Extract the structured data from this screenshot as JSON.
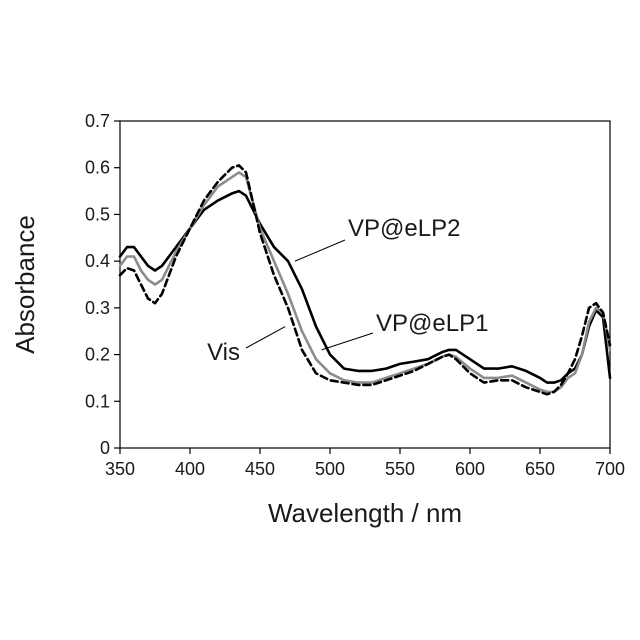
{
  "chart_data": {
    "type": "line",
    "title": "",
    "xlabel": "Wavelength / nm",
    "ylabel": "Absorbance",
    "xlim": [
      350,
      700
    ],
    "ylim": [
      0,
      0.7
    ],
    "xticks": [
      "350",
      "400",
      "450",
      "500",
      "550",
      "600",
      "650",
      "700"
    ],
    "yticks": [
      "0",
      "0.1",
      "0.2",
      "0.3",
      "0.4",
      "0.5",
      "0.6",
      "0.7"
    ],
    "grid": false,
    "legend": "none",
    "annotations": [
      {
        "text": "VP@eLP2",
        "series": 0,
        "x": 475,
        "y": 0.4
      },
      {
        "text": "VP@eLP1",
        "series": 1,
        "x": 494,
        "y": 0.21
      },
      {
        "text": "Vis",
        "series": 2,
        "x": 468,
        "y": 0.26
      }
    ],
    "series": [
      {
        "color": "#000000",
        "dash": "solid",
        "x": [
          350,
          355,
          360,
          365,
          370,
          375,
          380,
          390,
          400,
          410,
          420,
          430,
          435,
          440,
          450,
          460,
          470,
          480,
          490,
          500,
          510,
          520,
          530,
          540,
          550,
          560,
          570,
          580,
          585,
          590,
          600,
          610,
          620,
          630,
          640,
          650,
          655,
          660,
          665,
          670,
          675,
          680,
          685,
          690,
          695,
          700
        ],
        "y": [
          0.41,
          0.43,
          0.43,
          0.41,
          0.39,
          0.38,
          0.39,
          0.43,
          0.47,
          0.51,
          0.53,
          0.545,
          0.55,
          0.54,
          0.48,
          0.43,
          0.4,
          0.34,
          0.26,
          0.2,
          0.17,
          0.165,
          0.165,
          0.17,
          0.18,
          0.185,
          0.19,
          0.205,
          0.21,
          0.21,
          0.19,
          0.17,
          0.17,
          0.175,
          0.165,
          0.15,
          0.14,
          0.14,
          0.145,
          0.16,
          0.17,
          0.2,
          0.26,
          0.295,
          0.28,
          0.15
        ]
      },
      {
        "color": "#8c8c8c",
        "dash": "solid",
        "x": [
          350,
          355,
          360,
          365,
          370,
          375,
          380,
          390,
          400,
          410,
          420,
          430,
          435,
          440,
          450,
          460,
          470,
          480,
          490,
          500,
          510,
          520,
          530,
          540,
          550,
          560,
          570,
          580,
          585,
          590,
          600,
          610,
          620,
          630,
          640,
          650,
          655,
          660,
          665,
          670,
          675,
          680,
          685,
          690,
          695,
          700
        ],
        "y": [
          0.39,
          0.41,
          0.41,
          0.38,
          0.36,
          0.35,
          0.36,
          0.42,
          0.47,
          0.52,
          0.56,
          0.58,
          0.59,
          0.58,
          0.47,
          0.4,
          0.33,
          0.25,
          0.19,
          0.16,
          0.145,
          0.14,
          0.14,
          0.15,
          0.16,
          0.17,
          0.18,
          0.195,
          0.2,
          0.195,
          0.17,
          0.15,
          0.15,
          0.155,
          0.14,
          0.125,
          0.12,
          0.12,
          0.13,
          0.15,
          0.16,
          0.2,
          0.27,
          0.3,
          0.29,
          0.21
        ]
      },
      {
        "color": "#000000",
        "dash": "dashed",
        "x": [
          350,
          355,
          360,
          365,
          370,
          375,
          380,
          390,
          400,
          410,
          420,
          430,
          435,
          440,
          450,
          460,
          470,
          480,
          490,
          500,
          510,
          520,
          530,
          540,
          550,
          560,
          570,
          580,
          585,
          590,
          600,
          610,
          620,
          630,
          640,
          650,
          655,
          660,
          665,
          670,
          675,
          680,
          685,
          690,
          695,
          700
        ],
        "y": [
          0.37,
          0.385,
          0.38,
          0.35,
          0.32,
          0.31,
          0.33,
          0.41,
          0.47,
          0.53,
          0.57,
          0.6,
          0.605,
          0.59,
          0.46,
          0.37,
          0.3,
          0.21,
          0.16,
          0.145,
          0.14,
          0.135,
          0.135,
          0.145,
          0.155,
          0.165,
          0.18,
          0.195,
          0.2,
          0.19,
          0.16,
          0.14,
          0.145,
          0.145,
          0.13,
          0.12,
          0.115,
          0.12,
          0.135,
          0.16,
          0.19,
          0.24,
          0.3,
          0.31,
          0.29,
          0.22
        ]
      }
    ]
  }
}
